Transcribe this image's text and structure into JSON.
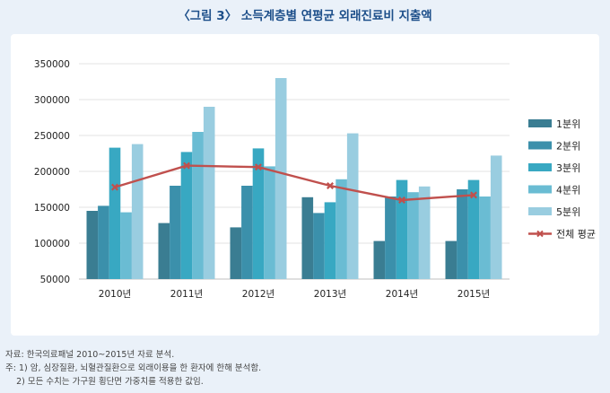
{
  "title": "〈그림 3〉 소득계층별 연평균 외래진료비 지출액",
  "notes": {
    "source": "자료: 한국의료패널 2010~2015년 자료 분석.",
    "note1": "주: 1) 암, 심장질환, 뇌혈관질환으로 외래이용을 한 환자에 한해 분석함.",
    "note2": "    2) 모든 수치는 가구원 횡단면 가중치를 적용한 값임."
  },
  "chart_data": {
    "type": "bar",
    "categories": [
      "2010년",
      "2011년",
      "2012년",
      "2013년",
      "2014년",
      "2015년"
    ],
    "ylim": [
      50000,
      350000
    ],
    "yticks": [
      "50000",
      "100000",
      "150000",
      "200000",
      "250000",
      "300000",
      "350000"
    ],
    "ytick_values": [
      50000,
      100000,
      150000,
      200000,
      250000,
      300000,
      350000
    ],
    "series": [
      {
        "name": "1분위",
        "color": "#3a7d92",
        "values": [
          145000,
          128000,
          122000,
          164000,
          103000,
          103000
        ]
      },
      {
        "name": "2분위",
        "color": "#3b90ab",
        "values": [
          152000,
          180000,
          180000,
          142000,
          165000,
          175000
        ]
      },
      {
        "name": "3분위",
        "color": "#38a8c2",
        "values": [
          233000,
          227000,
          232000,
          157000,
          188000,
          188000
        ]
      },
      {
        "name": "4분위",
        "color": "#6abcd3",
        "values": [
          143000,
          255000,
          207000,
          189000,
          171000,
          165000
        ]
      },
      {
        "name": "5분위",
        "color": "#99cde0",
        "values": [
          238000,
          290000,
          330000,
          253000,
          179000,
          222000
        ]
      }
    ],
    "line": {
      "name": "전체 평균",
      "color": "#c0504d",
      "values": [
        178000,
        208000,
        206000,
        180000,
        160000,
        167000
      ]
    },
    "legend_position": "right"
  }
}
